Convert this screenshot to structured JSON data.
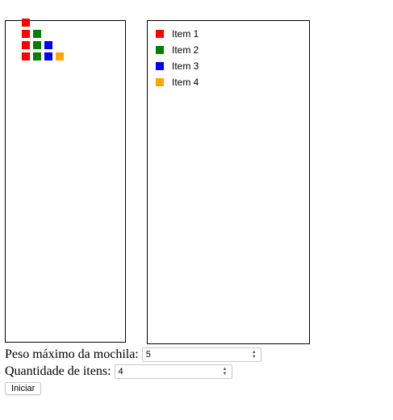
{
  "canvas": {
    "items": [
      {
        "name": "Item 1",
        "color": "#ff0000",
        "count": 4
      },
      {
        "name": "Item 2",
        "color": "#008000",
        "count": 3
      },
      {
        "name": "Item 3",
        "color": "#0000ff",
        "count": 2
      },
      {
        "name": "Item 4",
        "color": "#ffa500",
        "count": 1
      }
    ]
  },
  "legend": {
    "items": [
      {
        "label": "Item 1",
        "color": "#ff0000"
      },
      {
        "label": "Item 2",
        "color": "#008000"
      },
      {
        "label": "Item 3",
        "color": "#0000ff"
      },
      {
        "label": "Item 4",
        "color": "#ffa500"
      }
    ]
  },
  "form": {
    "peso_label": "Peso máximo da mochila:",
    "peso_value": "5",
    "quantidade_label": "Quantidade de itens:",
    "quantidade_value": "4",
    "start_button": "Iniciar"
  }
}
